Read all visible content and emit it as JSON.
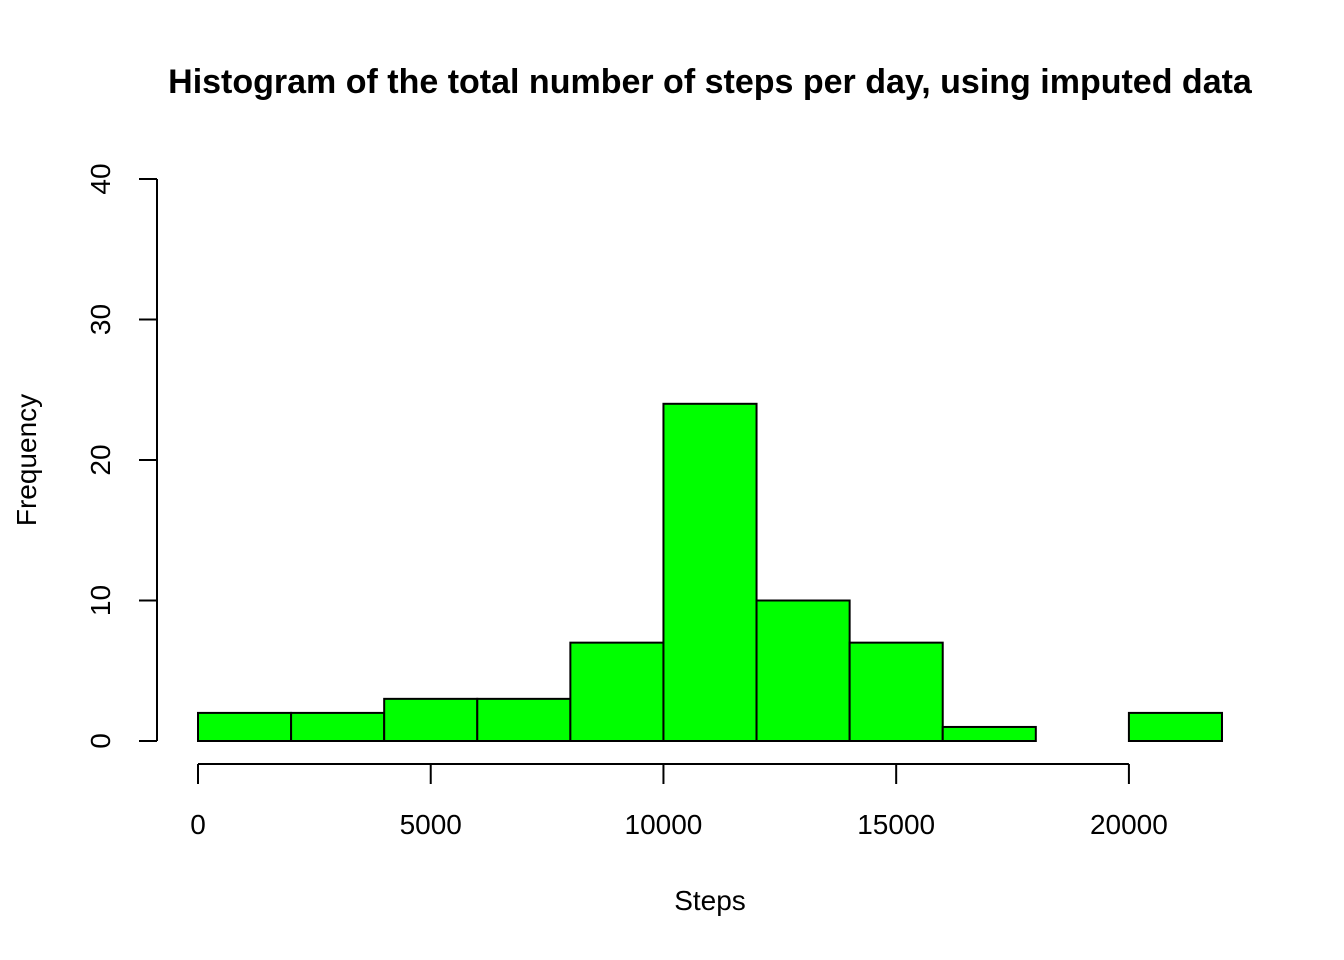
{
  "chart_data": {
    "type": "bar",
    "title": "Histogram of the total number of steps per day, using imputed data",
    "xlabel": "Steps",
    "ylabel": "Frequency",
    "bins": [
      {
        "from": 0,
        "to": 2000,
        "count": 2
      },
      {
        "from": 2000,
        "to": 4000,
        "count": 2
      },
      {
        "from": 4000,
        "to": 6000,
        "count": 3
      },
      {
        "from": 6000,
        "to": 8000,
        "count": 3
      },
      {
        "from": 8000,
        "to": 10000,
        "count": 7
      },
      {
        "from": 10000,
        "to": 12000,
        "count": 24
      },
      {
        "from": 12000,
        "to": 14000,
        "count": 10
      },
      {
        "from": 14000,
        "to": 16000,
        "count": 7
      },
      {
        "from": 16000,
        "to": 18000,
        "count": 1
      },
      {
        "from": 18000,
        "to": 20000,
        "count": 0
      },
      {
        "from": 20000,
        "to": 22000,
        "count": 2
      }
    ],
    "xlim": [
      0,
      22000
    ],
    "ylim": [
      0,
      40
    ],
    "x_ticks": [
      0,
      5000,
      10000,
      15000,
      20000
    ],
    "y_ticks": [
      0,
      10,
      20,
      30,
      40
    ],
    "bar_color": "#00ff00",
    "grid": false,
    "legend": "none"
  }
}
